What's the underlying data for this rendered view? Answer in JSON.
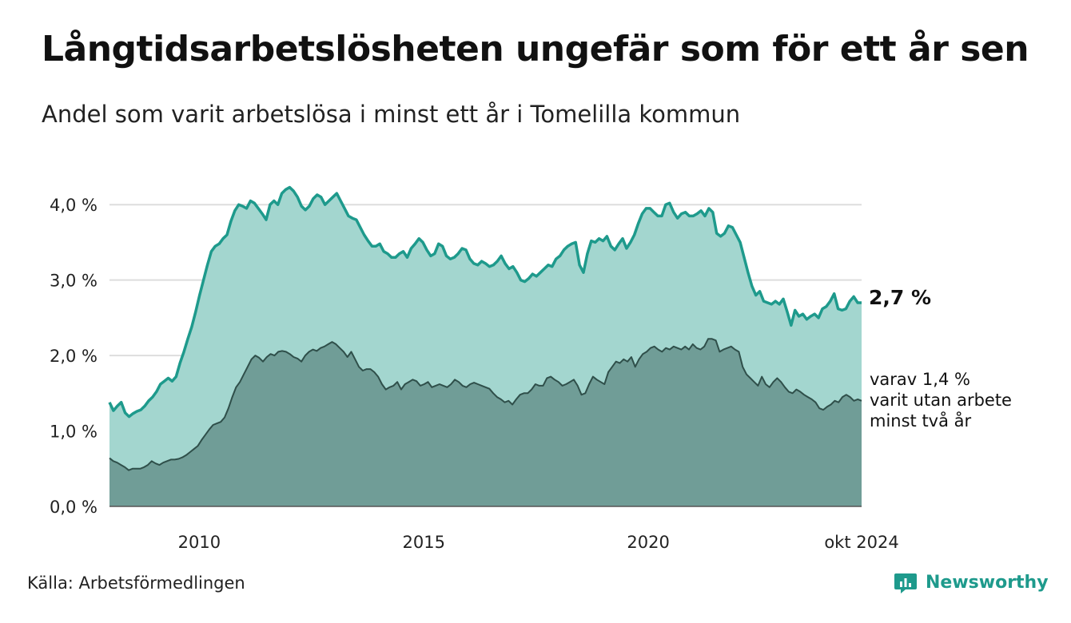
{
  "title": "Långtidsarbetslösheten ungefär som för ett år sen",
  "subtitle": "Andel som varit arbetslösa i minst ett år i Tomelilla kommun",
  "source": "Källa: Arbetsförmedlingen",
  "brand": "Newsworthy",
  "colors": {
    "series1_line": "#1e9a8c",
    "series1_fill": "#a3d6cf",
    "series2_line": "#2f4f4a",
    "series2_fill": "#709d97",
    "grid": "#dddddd",
    "brand": "#1e9a8c"
  },
  "chart_data": {
    "type": "area",
    "x_start": "2008-01",
    "x_end": "2024-10",
    "xticks": [
      "2010",
      "2015",
      "2020",
      "okt 2024"
    ],
    "yticks": [
      "0,0 %",
      "1,0 %",
      "2,0 %",
      "3,0 %",
      "4,0 %"
    ],
    "ylim": [
      0,
      4.5
    ],
    "grid": true,
    "end_label": "2,7 %",
    "sub_label_lines": [
      "varav 1,4 %",
      "varit utan arbete",
      "minst två år"
    ],
    "series": [
      {
        "values": [
          1.38,
          1.27,
          1.33,
          1.38,
          1.24,
          1.19,
          1.23,
          1.26,
          1.28,
          1.33,
          1.4,
          1.45,
          1.52,
          1.62,
          1.66,
          1.7,
          1.66,
          1.72,
          1.9,
          2.05,
          2.22,
          2.38,
          2.58,
          2.8,
          3.0,
          3.2,
          3.38,
          3.45,
          3.48,
          3.55,
          3.6,
          3.78,
          3.92,
          4.0,
          3.98,
          3.95,
          4.05,
          4.02,
          3.95,
          3.88,
          3.8,
          4.0,
          4.05,
          4.0,
          4.15,
          4.2,
          4.23,
          4.18,
          4.1,
          3.98,
          3.93,
          3.98,
          4.08,
          4.13,
          4.1,
          4.0,
          4.05,
          4.1,
          4.15,
          4.05,
          3.95,
          3.85,
          3.82,
          3.8,
          3.7,
          3.6,
          3.52,
          3.45,
          3.45,
          3.48,
          3.38,
          3.35,
          3.3,
          3.3,
          3.35,
          3.38,
          3.3,
          3.42,
          3.48,
          3.55,
          3.5,
          3.4,
          3.32,
          3.35,
          3.48,
          3.45,
          3.32,
          3.28,
          3.3,
          3.35,
          3.42,
          3.4,
          3.28,
          3.22,
          3.2,
          3.25,
          3.22,
          3.18,
          3.2,
          3.25,
          3.32,
          3.22,
          3.15,
          3.18,
          3.1,
          3.0,
          2.98,
          3.02,
          3.08,
          3.05,
          3.1,
          3.15,
          3.2,
          3.18,
          3.28,
          3.32,
          3.4,
          3.45,
          3.48,
          3.5,
          3.2,
          3.1,
          3.35,
          3.52,
          3.5,
          3.55,
          3.52,
          3.58,
          3.45,
          3.4,
          3.48,
          3.55,
          3.42,
          3.5,
          3.6,
          3.75,
          3.88,
          3.95,
          3.95,
          3.9,
          3.85,
          3.85,
          4.0,
          4.02,
          3.9,
          3.82,
          3.88,
          3.9,
          3.85,
          3.85,
          3.88,
          3.92,
          3.85,
          3.95,
          3.9,
          3.62,
          3.58,
          3.62,
          3.72,
          3.7,
          3.6,
          3.5,
          3.3,
          3.1,
          2.92,
          2.8,
          2.85,
          2.72,
          2.7,
          2.68,
          2.72,
          2.68,
          2.75,
          2.58,
          2.4,
          2.6,
          2.52,
          2.55,
          2.48,
          2.52,
          2.55,
          2.5,
          2.62,
          2.65,
          2.72,
          2.82,
          2.62,
          2.6,
          2.62,
          2.72,
          2.78,
          2.7,
          2.7
        ],
        "line_color": "#1e9a8c",
        "fill_color": "#a3d6cf"
      },
      {
        "values": [
          0.64,
          0.6,
          0.58,
          0.55,
          0.52,
          0.48,
          0.5,
          0.5,
          0.5,
          0.52,
          0.55,
          0.6,
          0.57,
          0.55,
          0.58,
          0.6,
          0.62,
          0.62,
          0.63,
          0.65,
          0.68,
          0.72,
          0.76,
          0.8,
          0.88,
          0.95,
          1.02,
          1.08,
          1.1,
          1.12,
          1.18,
          1.3,
          1.45,
          1.58,
          1.65,
          1.75,
          1.85,
          1.95,
          2.0,
          1.97,
          1.92,
          1.98,
          2.02,
          2.0,
          2.05,
          2.06,
          2.05,
          2.02,
          1.98,
          1.96,
          1.92,
          2.0,
          2.05,
          2.08,
          2.06,
          2.1,
          2.12,
          2.15,
          2.18,
          2.15,
          2.1,
          2.05,
          1.98,
          2.05,
          1.95,
          1.85,
          1.8,
          1.82,
          1.82,
          1.78,
          1.72,
          1.62,
          1.55,
          1.58,
          1.6,
          1.65,
          1.55,
          1.62,
          1.65,
          1.68,
          1.66,
          1.6,
          1.62,
          1.65,
          1.58,
          1.6,
          1.62,
          1.6,
          1.58,
          1.62,
          1.68,
          1.65,
          1.6,
          1.58,
          1.62,
          1.64,
          1.62,
          1.6,
          1.58,
          1.56,
          1.5,
          1.45,
          1.42,
          1.38,
          1.4,
          1.35,
          1.42,
          1.48,
          1.5,
          1.5,
          1.55,
          1.62,
          1.6,
          1.6,
          1.7,
          1.72,
          1.68,
          1.65,
          1.6,
          1.62,
          1.65,
          1.68,
          1.6,
          1.48,
          1.5,
          1.62,
          1.72,
          1.68,
          1.65,
          1.62,
          1.78,
          1.85,
          1.92,
          1.9,
          1.95,
          1.92,
          1.98,
          1.85,
          1.95,
          2.02,
          2.05,
          2.1,
          2.12,
          2.08,
          2.05,
          2.1,
          2.08,
          2.12,
          2.1,
          2.08,
          2.12,
          2.08,
          2.15,
          2.1,
          2.08,
          2.12,
          2.22,
          2.22,
          2.2,
          2.05,
          2.08,
          2.1,
          2.12,
          2.08,
          2.05,
          1.85,
          1.75,
          1.7,
          1.65,
          1.6,
          1.72,
          1.62,
          1.58,
          1.65,
          1.7,
          1.65,
          1.58,
          1.52,
          1.5,
          1.55,
          1.52,
          1.48,
          1.45,
          1.42,
          1.38,
          1.3,
          1.28,
          1.32,
          1.35,
          1.4,
          1.38,
          1.45,
          1.48,
          1.45,
          1.4,
          1.42,
          1.4
        ],
        "line_color": "#2f4f4a",
        "fill_color": "#709d97"
      }
    ]
  }
}
